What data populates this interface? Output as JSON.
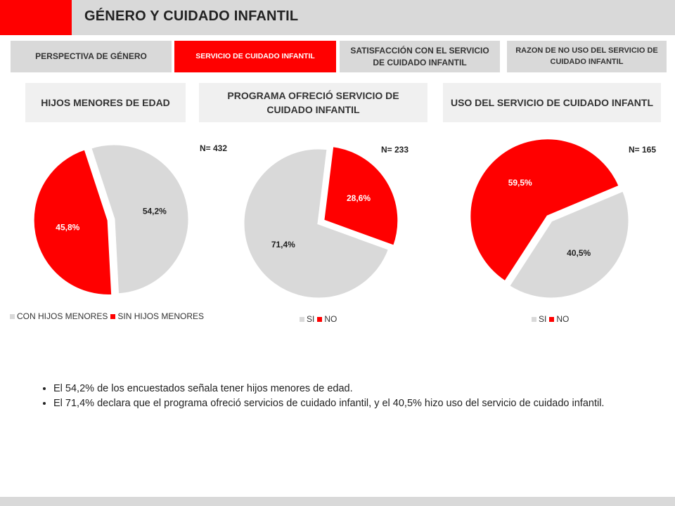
{
  "header": {
    "title": "GÉNERO Y CUIDADO INFANTIL",
    "accent": "#ff0000",
    "bar": "#d9d9d9"
  },
  "tabs": [
    {
      "label": "PERSPECTIVA DE GÉNERO",
      "active": false
    },
    {
      "label": "SERVICIO DE CUIDADO INFANTIL",
      "active": true
    },
    {
      "label": "SATISFACCIÓN CON EL SERVICIO DE CUIDADO INFANTIL",
      "active": false
    },
    {
      "label": "RAZON DE NO USO DEL SERVICIO DE CUIDADO INFANTIL",
      "active": false
    }
  ],
  "colors": {
    "grey_slice": "#d9d9d9",
    "red_slice": "#ff0000"
  },
  "chart_data": [
    {
      "type": "pie",
      "title": "HIJOS MENORES DE EDAD",
      "n_label": "N= 432",
      "slices": [
        {
          "name": "CON HIJOS MENORES",
          "value": 54.2,
          "label": "54,2%",
          "color": "#d9d9d9"
        },
        {
          "name": "SIN HIJOS MENORES",
          "value": 45.8,
          "label": "45,8%",
          "color": "#ff0000"
        }
      ],
      "legend": [
        "CON HIJOS MENORES",
        "SIN HIJOS MENORES"
      ],
      "legend_position": "bottom"
    },
    {
      "type": "pie",
      "title": "PROGRAMA OFRECIÓ SERVICIO DE CUIDADO INFANTIL",
      "n_label": "N= 233",
      "slices": [
        {
          "name": "SI",
          "value": 71.4,
          "label": "71,4%",
          "color": "#d9d9d9"
        },
        {
          "name": "NO",
          "value": 28.6,
          "label": "28,6%",
          "color": "#ff0000"
        }
      ],
      "legend": [
        "SI",
        "NO"
      ],
      "legend_position": "bottom"
    },
    {
      "type": "pie",
      "title": "USO DEL SERVICIO DE CUIDADO INFANTL",
      "n_label": "N= 165",
      "slices": [
        {
          "name": "SI",
          "value": 40.5,
          "label": "40,5%",
          "color": "#d9d9d9"
        },
        {
          "name": "NO",
          "value": 59.5,
          "label": "59,5%",
          "color": "#ff0000"
        }
      ],
      "legend": [
        "SI",
        "NO"
      ],
      "legend_position": "bottom"
    }
  ],
  "notes": [
    "El 54,2% de los encuestados señala tener hijos menores de edad.",
    "El 71,4% declara que el programa ofreció servicios de cuidado infantil, y el 40,5% hizo uso del servicio de cuidado infantil."
  ]
}
